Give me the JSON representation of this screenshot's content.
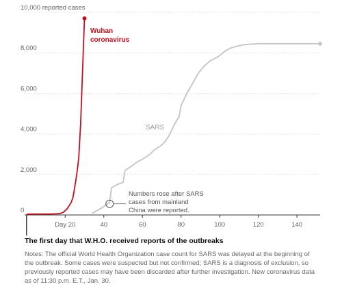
{
  "chart_data": {
    "type": "line",
    "title": "",
    "xlabel": "",
    "ylabel": "",
    "xlim": [
      -1,
      152
    ],
    "ylim": [
      0,
      10000
    ],
    "grid": true,
    "x_ticks": [
      {
        "value": 20,
        "label": "Day 20"
      },
      {
        "value": 40,
        "label": "40"
      },
      {
        "value": 60,
        "label": "60"
      },
      {
        "value": 80,
        "label": "80"
      },
      {
        "value": 100,
        "label": "100"
      },
      {
        "value": 120,
        "label": "120"
      },
      {
        "value": 140,
        "label": "140"
      }
    ],
    "y_ticks": [
      {
        "value": 0,
        "label": "0"
      },
      {
        "value": 2000,
        "label": "2,000"
      },
      {
        "value": 4000,
        "label": "4,000"
      },
      {
        "value": 6000,
        "label": "6,000"
      },
      {
        "value": 8000,
        "label": "8,000"
      },
      {
        "value": 10000,
        "label": "10,000 reported cases"
      }
    ],
    "series": [
      {
        "name": "Wuhan coronavirus",
        "label_lines": [
          "Wuhan",
          "coronavirus"
        ],
        "color": "#c0111e",
        "x": [
          0,
          3,
          6,
          10,
          14,
          17,
          19,
          21,
          22,
          23,
          24,
          25,
          26,
          27,
          28,
          29,
          30
        ],
        "y": [
          40,
          45,
          45,
          45,
          50,
          60,
          130,
          300,
          450,
          600,
          850,
          1400,
          2000,
          2800,
          4500,
          7100,
          9700
        ]
      },
      {
        "name": "SARS",
        "label_lines": [
          "SARS"
        ],
        "color": "#c8c8c8",
        "x": [
          34,
          39,
          42,
          43,
          44,
          48,
          50,
          51,
          55,
          57,
          60,
          64,
          66,
          70,
          72,
          74,
          77,
          79,
          80,
          83,
          86,
          89,
          92,
          95,
          99,
          103,
          106,
          112,
          120,
          130,
          140,
          152
        ],
        "y": [
          80,
          350,
          550,
          600,
          1350,
          1550,
          1600,
          2200,
          2450,
          2600,
          2750,
          3000,
          3200,
          3450,
          3650,
          3950,
          4550,
          4850,
          5400,
          6000,
          6500,
          7000,
          7350,
          7600,
          7800,
          8100,
          8250,
          8400,
          8450,
          8450,
          8450,
          8450
        ]
      }
    ],
    "annotation": {
      "lines": [
        "Numbers rose after SARS",
        "cases from mainland",
        "China were reported."
      ],
      "x": 43,
      "y": 550
    },
    "caption": "The first day that W.H.O. received reports of the outbreaks",
    "notes": "Notes: The official World Health Organization case count for SARS was delayed at the beginning of the outbreak. Some cases were suspected but not confirmed; SARS is a diagnosis of exclusion, so previously reported cases may have been discarded after further investigation. New coronavirus data as of 11:30 p.m. E.T., Jan. 30."
  }
}
